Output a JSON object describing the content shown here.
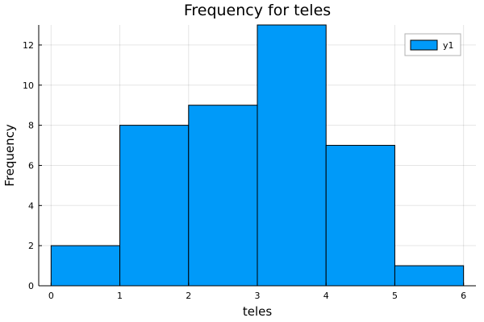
{
  "chart_data": {
    "type": "bar",
    "title": "Frequency for teles",
    "xlabel": "teles",
    "ylabel": "Frequency",
    "bins": [
      [
        0,
        1
      ],
      [
        1,
        2
      ],
      [
        2,
        3
      ],
      [
        3,
        4
      ],
      [
        4,
        5
      ],
      [
        5,
        6
      ]
    ],
    "values": [
      2,
      8,
      9,
      13,
      7,
      1
    ],
    "xlim": [
      -0.18,
      6.18
    ],
    "ylim": [
      0,
      13
    ],
    "xticks": [
      0,
      1,
      2,
      3,
      4,
      5,
      6
    ],
    "yticks": [
      0,
      2,
      4,
      6,
      8,
      10,
      12
    ],
    "series": [
      {
        "name": "y1",
        "values": [
          2,
          8,
          9,
          13,
          7,
          1
        ]
      }
    ],
    "grid": true,
    "legend_position": "top-right",
    "colors": {
      "bar": "#009af9",
      "edge": "#000000"
    }
  }
}
